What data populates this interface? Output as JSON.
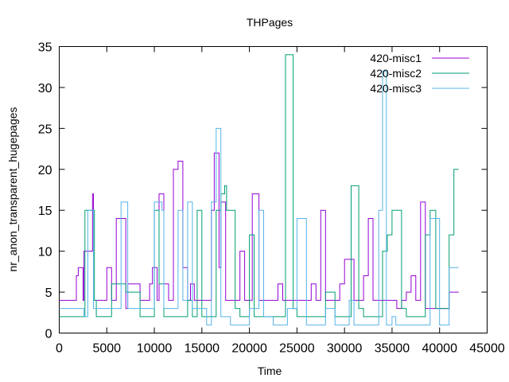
{
  "chart_data": {
    "type": "line",
    "title": "THPages",
    "xlabel": "Time",
    "ylabel": "nr_anon_transparent_hugepages",
    "xlim": [
      0,
      45000
    ],
    "ylim": [
      0,
      35
    ],
    "x_ticks": [
      0,
      5000,
      10000,
      15000,
      20000,
      25000,
      30000,
      35000,
      40000,
      45000
    ],
    "y_ticks": [
      0,
      5,
      10,
      15,
      20,
      25,
      30,
      35
    ],
    "grid": false,
    "legend_position": "top-right",
    "step": true,
    "series": [
      {
        "name": "420-misc1",
        "color": "#9400d3",
        "x": [
          0,
          1500,
          1800,
          2000,
          2500,
          2600,
          3500,
          3600,
          4800,
          5000,
          5500,
          6000,
          7000,
          7200,
          8500,
          9000,
          9500,
          9800,
          10300,
          10500,
          11000,
          11500,
          12000,
          12500,
          13000,
          13500,
          13800,
          14200,
          15000,
          16000,
          16300,
          16800,
          17000,
          17500,
          18000,
          19000,
          19500,
          20300,
          21000,
          21500,
          22000,
          22500,
          23000,
          23500,
          24000,
          24500,
          25000,
          26000,
          26500,
          27000,
          27500,
          28000,
          28500,
          29000,
          29500,
          30000,
          31000,
          31500,
          32000,
          32500,
          33000,
          34000,
          35000,
          35500,
          36000,
          36500,
          37000,
          37500,
          38000,
          38500,
          40000,
          41000,
          42000
        ],
        "y": [
          4,
          4,
          7,
          8,
          4,
          10,
          17,
          4,
          4,
          8,
          4,
          14,
          3,
          6,
          4,
          4,
          6,
          8,
          4,
          17,
          6,
          4,
          20,
          21,
          8,
          4,
          6,
          4,
          4,
          15,
          22,
          8,
          16,
          4,
          4,
          10,
          4,
          17,
          4,
          4,
          4,
          4,
          6,
          4,
          4,
          4,
          4,
          4,
          6,
          4,
          15,
          4,
          4,
          4,
          6,
          9,
          4,
          4,
          7,
          14,
          4,
          4,
          4,
          3,
          4,
          5,
          7,
          4,
          16,
          3,
          3,
          5,
          5
        ]
      },
      {
        "name": "420-misc2",
        "color": "#009e73",
        "x": [
          0,
          2000,
          2700,
          3700,
          3900,
          5000,
          5500,
          6500,
          7000,
          8500,
          9000,
          10000,
          10500,
          11000,
          12000,
          13000,
          13500,
          14000,
          14500,
          15000,
          16000,
          16500,
          17000,
          17400,
          17600,
          18500,
          19000,
          20000,
          20500,
          21500,
          22000,
          23500,
          23800,
          24600,
          25000,
          27000,
          28000,
          29000,
          30000,
          30700,
          31500,
          32000,
          33000,
          34000,
          34500,
          35000,
          36000,
          36500,
          37000,
          38000,
          38500,
          39000,
          39600,
          40000,
          41000,
          41500,
          42000
        ],
        "y": [
          2,
          2,
          15,
          4,
          2,
          2,
          6,
          6,
          5,
          2,
          2,
          15,
          6,
          2,
          2,
          2,
          4,
          2,
          15,
          2,
          2,
          15,
          17,
          18,
          15,
          3,
          2,
          12,
          2,
          2,
          2,
          2,
          34,
          3,
          2,
          2,
          5,
          2,
          2,
          18,
          3,
          2,
          2,
          10,
          12,
          15,
          3,
          2,
          2,
          2,
          12,
          15,
          3,
          3,
          12,
          20,
          20
        ]
      },
      {
        "name": "420-misc3",
        "color": "#56b4e9",
        "x": [
          0,
          1800,
          2600,
          3000,
          3600,
          4500,
          5500,
          6500,
          7200,
          8500,
          9000,
          10000,
          10800,
          11000,
          11500,
          12000,
          12500,
          13000,
          13500,
          14000,
          15000,
          15500,
          16000,
          16500,
          17000,
          18000,
          19000,
          20000,
          21000,
          21500,
          22500,
          23000,
          24000,
          25000,
          26000,
          27000,
          28000,
          29000,
          30000,
          30500,
          31000,
          32000,
          33000,
          33600,
          34000,
          34400,
          35000,
          35400,
          36000,
          37000,
          38000,
          39000,
          40000,
          41000,
          41500,
          42000
        ],
        "y": [
          3,
          3,
          2,
          15,
          3,
          3,
          3,
          16,
          3,
          3,
          3,
          16,
          15,
          3,
          3,
          3,
          15,
          4,
          16,
          3,
          3,
          1,
          16,
          25,
          2,
          1,
          1,
          3,
          15,
          2,
          1,
          1,
          3,
          14,
          1,
          1,
          3,
          1,
          1,
          4,
          1,
          1,
          1,
          15,
          32,
          1,
          2,
          1,
          1,
          1,
          1,
          14,
          1,
          8,
          8,
          8
        ]
      }
    ]
  }
}
